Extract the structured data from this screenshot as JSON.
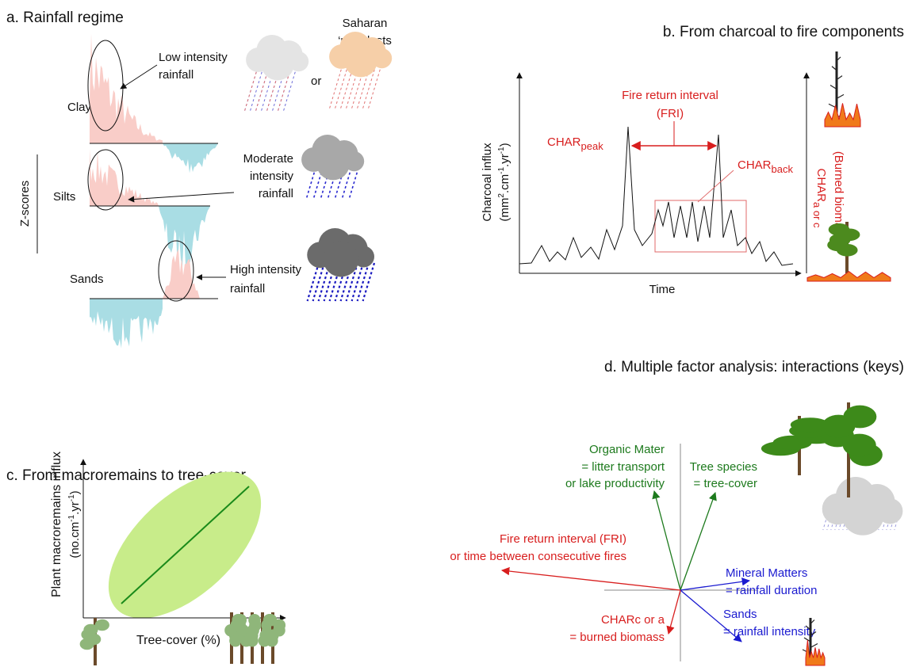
{
  "panel_a": {
    "title": "a. Rainfall regime",
    "low_intensity": [
      "Low intensity",
      "rainfall"
    ],
    "saharan": [
      "Saharan",
      "‘red’ dusts"
    ],
    "or": "or",
    "clay": "Clay",
    "silts": "Silts",
    "sands": "Sands",
    "z_scores": "Z-scores",
    "moderate": [
      "Moderate",
      "intensity",
      "rainfall"
    ],
    "high": [
      "High intensity",
      "rainfall"
    ]
  },
  "panel_b": {
    "title": "b. From charcoal to fire components",
    "fri": [
      "Fire return interval",
      "(FRI)"
    ],
    "char_peak": [
      "CHAR",
      "peak"
    ],
    "char_back": [
      "CHAR",
      "back"
    ],
    "y_label": "Charcoal influx",
    "y_units": [
      "(mm",
      "2",
      ".cm",
      "-1",
      ".yr",
      "-1",
      ")"
    ],
    "x_label": "Time",
    "right_label": [
      "CHAR",
      "a or c"
    ],
    "right_sub": "(Burned biomass)"
  },
  "panel_c": {
    "title": "c. From macroremains to tree-cover",
    "y_label": "Plant macroremains influx",
    "y_units": [
      "(no.cm",
      "-1",
      ".yr",
      "-1",
      ")"
    ],
    "x_label": "Tree-cover (%)"
  },
  "panel_d": {
    "title": "d. Multiple factor analysis: interactions (keys)",
    "organic": [
      "Organic Mater",
      "= litter transport",
      "or lake productivity"
    ],
    "tree": [
      "Tree species",
      "= tree-cover"
    ],
    "fri": [
      "Fire return interval (FRI)",
      "or time between consecutive fires"
    ],
    "mineral": [
      "Mineral Matters",
      "= rainfall duration"
    ],
    "sands": [
      "Sands",
      "= rainfall intensity"
    ],
    "charc": [
      "CHARc or a",
      "= burned biomass"
    ]
  }
}
